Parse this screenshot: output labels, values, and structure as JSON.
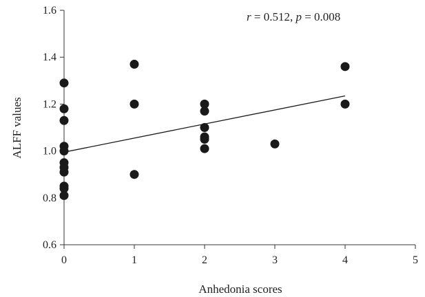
{
  "chart_data": {
    "type": "scatter",
    "xlabel": "Anhedonia scores",
    "ylabel": "ALFF values",
    "xlim": [
      0,
      5
    ],
    "ylim": [
      0.6,
      1.6
    ],
    "x_ticks": [
      "0",
      "1",
      "2",
      "3",
      "4",
      "5"
    ],
    "y_ticks": [
      "0.6",
      "0.8",
      "1.0",
      "1.2",
      "1.4",
      "1.6"
    ],
    "grid": false,
    "annotation": {
      "r_symbol": "r",
      "r_value": " = 0.512, ",
      "p_symbol": "p",
      "p_value": " = 0.008"
    },
    "points": [
      {
        "x": 0,
        "y": 1.29
      },
      {
        "x": 0,
        "y": 1.18
      },
      {
        "x": 0,
        "y": 1.13
      },
      {
        "x": 0,
        "y": 1.02
      },
      {
        "x": 0,
        "y": 1.0
      },
      {
        "x": 0,
        "y": 0.95
      },
      {
        "x": 0,
        "y": 0.93
      },
      {
        "x": 0,
        "y": 0.91
      },
      {
        "x": 0,
        "y": 0.85
      },
      {
        "x": 0,
        "y": 0.84
      },
      {
        "x": 0,
        "y": 0.81
      },
      {
        "x": 1,
        "y": 1.37
      },
      {
        "x": 1,
        "y": 1.2
      },
      {
        "x": 1,
        "y": 0.9
      },
      {
        "x": 2,
        "y": 1.2
      },
      {
        "x": 2,
        "y": 1.17
      },
      {
        "x": 2,
        "y": 1.1
      },
      {
        "x": 2,
        "y": 1.06
      },
      {
        "x": 2,
        "y": 1.05
      },
      {
        "x": 2,
        "y": 1.01
      },
      {
        "x": 3,
        "y": 1.03
      },
      {
        "x": 4,
        "y": 1.36
      },
      {
        "x": 4,
        "y": 1.2
      }
    ],
    "trendline": {
      "x": [
        0,
        4
      ],
      "y": [
        0.995,
        1.235
      ]
    },
    "colors": {
      "points": "#1a1a1a",
      "line": "#1a1a1a",
      "axes": "#333333"
    }
  }
}
